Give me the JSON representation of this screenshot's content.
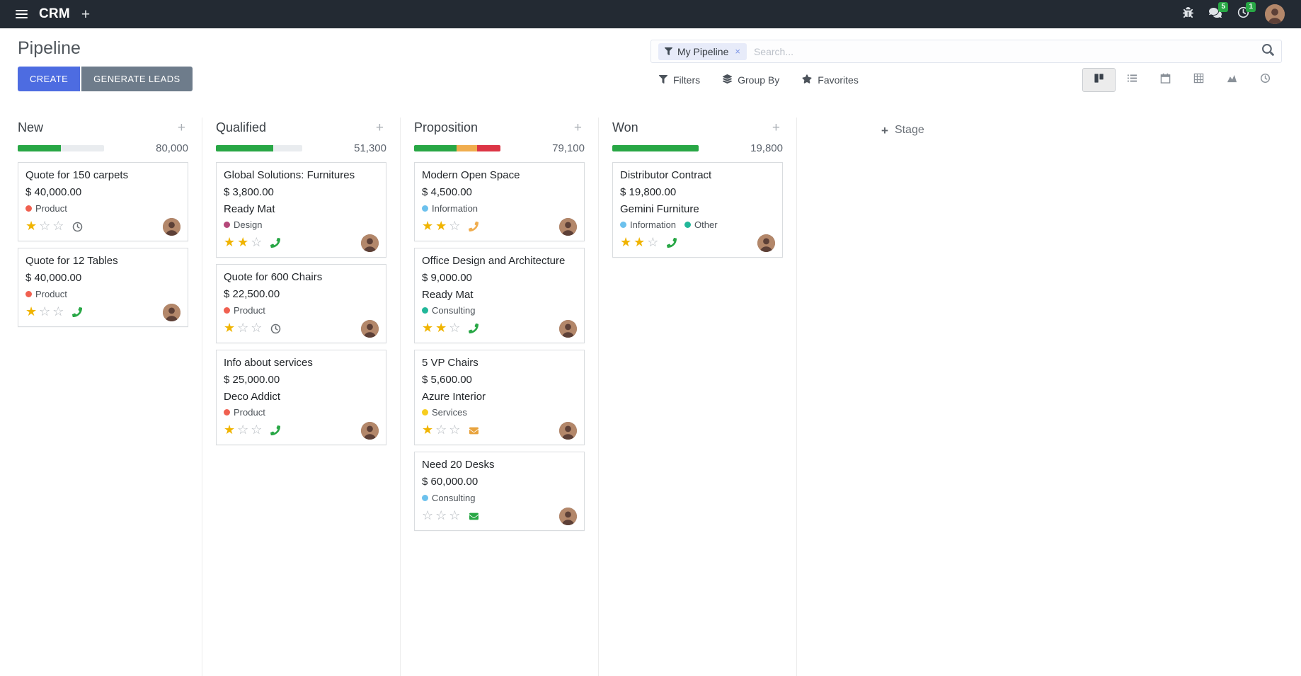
{
  "navbar": {
    "app_name": "CRM",
    "messages_badge": "5",
    "activities_badge": "1"
  },
  "control_panel": {
    "title": "Pipeline",
    "create_label": "CREATE",
    "generate_leads_label": "GENERATE LEADS",
    "search": {
      "facet": "My Pipeline",
      "placeholder": "Search..."
    },
    "filters_label": "Filters",
    "group_by_label": "Group By",
    "favorites_label": "Favorites",
    "view_switcher": {
      "active": "kanban",
      "views": [
        "kanban",
        "list",
        "calendar",
        "pivot",
        "graph",
        "activity"
      ]
    }
  },
  "icons": {
    "menu": "hamburger",
    "plus": "+",
    "facet_filter": "funnel",
    "facet_remove": "×",
    "search": "magnifier",
    "filters": "funnel",
    "group_by": "layers",
    "favorites": "star",
    "add_stage_plus": "+",
    "column_add": "+",
    "star_filled": "★",
    "star_empty": "☆"
  },
  "kanban": {
    "add_stage_label": "Stage",
    "columns": [
      {
        "name": "New",
        "total": "80,000",
        "progress": [
          {
            "color": "#28a745",
            "pct": 50
          }
        ],
        "cards": [
          {
            "title": "Quote for 150 carpets",
            "amount": "$ 40,000.00",
            "partner": null,
            "tags": [
              {
                "label": "Product",
                "color": "#f06050"
              }
            ],
            "stars": 1,
            "activity": {
              "type": "clock",
              "color": "#6b7075"
            }
          },
          {
            "title": "Quote for 12 Tables",
            "amount": "$ 40,000.00",
            "partner": null,
            "tags": [
              {
                "label": "Product",
                "color": "#f06050"
              }
            ],
            "stars": 1,
            "activity": {
              "type": "phone",
              "color": "#28a745"
            }
          }
        ]
      },
      {
        "name": "Qualified",
        "total": "51,300",
        "progress": [
          {
            "color": "#28a745",
            "pct": 66
          }
        ],
        "cards": [
          {
            "title": "Global Solutions: Furnitures",
            "amount": "$ 3,800.00",
            "partner": "Ready Mat",
            "tags": [
              {
                "label": "Design",
                "color": "#b5487a"
              }
            ],
            "stars": 2,
            "activity": {
              "type": "phone",
              "color": "#28a745"
            }
          },
          {
            "title": "Quote for 600 Chairs",
            "amount": "$ 22,500.00",
            "partner": null,
            "tags": [
              {
                "label": "Product",
                "color": "#f06050"
              }
            ],
            "stars": 1,
            "activity": {
              "type": "clock",
              "color": "#6b7075"
            }
          },
          {
            "title": "Info about services",
            "amount": "$ 25,000.00",
            "partner": "Deco Addict",
            "tags": [
              {
                "label": "Product",
                "color": "#f06050"
              }
            ],
            "stars": 1,
            "activity": {
              "type": "phone",
              "color": "#28a745"
            }
          }
        ]
      },
      {
        "name": "Proposition",
        "total": "79,100",
        "progress": [
          {
            "color": "#28a745",
            "pct": 49
          },
          {
            "color": "#f0ad4e",
            "pct": 24
          },
          {
            "color": "#dc3545",
            "pct": 27
          }
        ],
        "cards": [
          {
            "title": "Modern Open Space",
            "amount": "$ 4,500.00",
            "partner": null,
            "tags": [
              {
                "label": "Information",
                "color": "#6cc1ed"
              }
            ],
            "stars": 2,
            "activity": {
              "type": "phone",
              "color": "#f0ad4e"
            }
          },
          {
            "title": "Office Design and Architecture",
            "amount": "$ 9,000.00",
            "partner": "Ready Mat",
            "tags": [
              {
                "label": "Consulting",
                "color": "#21b799"
              }
            ],
            "stars": 2,
            "activity": {
              "type": "phone",
              "color": "#28a745"
            }
          },
          {
            "title": "5 VP Chairs",
            "amount": "$ 5,600.00",
            "partner": "Azure Interior",
            "tags": [
              {
                "label": "Services",
                "color": "#f7cd1f"
              }
            ],
            "stars": 1,
            "activity": {
              "type": "envelope",
              "color": "#e8a33d"
            }
          },
          {
            "title": "Need 20 Desks",
            "amount": "$ 60,000.00",
            "partner": null,
            "tags": [
              {
                "label": "Consulting",
                "color": "#6cc1ed"
              }
            ],
            "stars": 0,
            "activity": {
              "type": "envelope",
              "color": "#28a745"
            }
          }
        ]
      },
      {
        "name": "Won",
        "total": "19,800",
        "progress": [
          {
            "color": "#28a745",
            "pct": 100
          }
        ],
        "cards": [
          {
            "title": "Distributor Contract",
            "amount": "$ 19,800.00",
            "partner": "Gemini Furniture",
            "tags": [
              {
                "label": "Information",
                "color": "#6cc1ed"
              },
              {
                "label": "Other",
                "color": "#21b799"
              }
            ],
            "stars": 2,
            "activity": {
              "type": "phone",
              "color": "#28a745"
            }
          }
        ]
      }
    ]
  }
}
